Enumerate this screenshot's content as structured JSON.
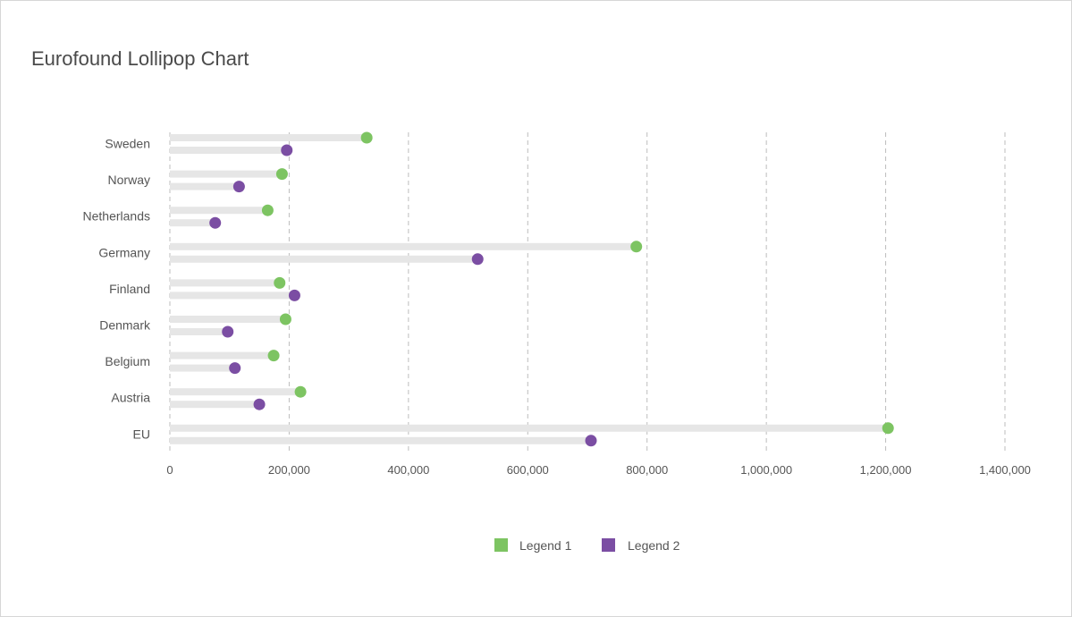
{
  "chart_data": {
    "type": "lollipop",
    "title": "Eurofound Lollipop Chart",
    "categories": [
      "Sweden",
      "Norway",
      "Netherlands",
      "Germany",
      "Finland",
      "Denmark",
      "Belgium",
      "Austria",
      "EU"
    ],
    "series": [
      {
        "name": "Legend 1",
        "color": "#7dc462",
        "values": [
          330000,
          188000,
          164000,
          782000,
          184000,
          194000,
          174000,
          219000,
          1204000
        ]
      },
      {
        "name": "Legend 2",
        "color": "#7b4ea3",
        "values": [
          196000,
          116000,
          76000,
          516000,
          209000,
          97000,
          109000,
          150000,
          706000
        ]
      }
    ],
    "x_ticks": [
      "0",
      "200,000",
      "400,000",
      "600,000",
      "800,000",
      "1,000,000",
      "1,200,000",
      "1,400,000"
    ],
    "xlim": [
      0,
      1400000
    ],
    "xlabel": "",
    "ylabel": "",
    "grid": "vertical-dashed",
    "track_color": "#e6e6e6",
    "legend_position": "bottom-center"
  }
}
